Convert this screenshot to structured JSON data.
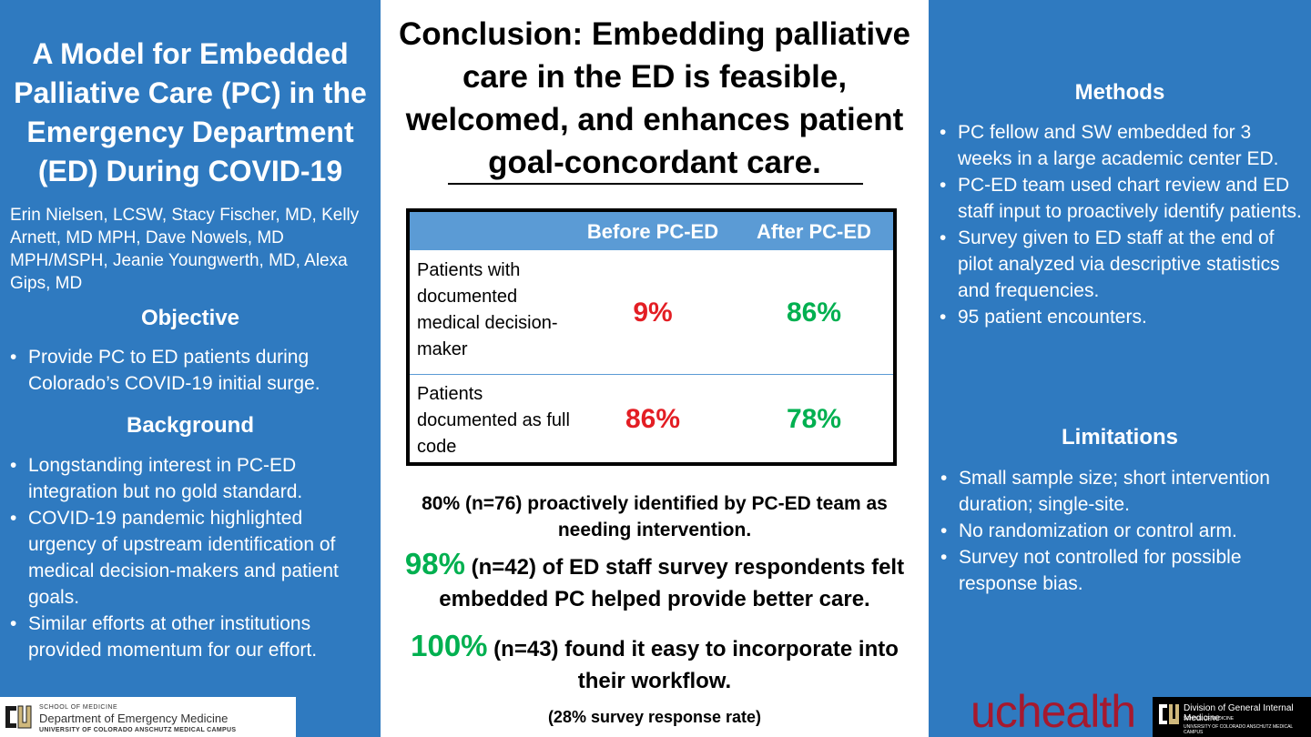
{
  "left": {
    "title": "A Model for Embedded Palliative Care (PC) in the Emergency Department (ED) During COVID-19",
    "authors": "Erin Nielsen, LCSW, Stacy Fischer, MD, Kelly Arnett, MD MPH, Dave Nowels, MD MPH/MSPH, Jeanie Youngwerth, MD, Alexa Gips, MD",
    "objective_heading": "Objective",
    "objective_items": [
      "Provide PC to ED patients during Colorado’s COVID-19 initial surge."
    ],
    "background_heading": "Background",
    "background_items": [
      "Longstanding interest in PC-ED integration but no gold standard.",
      "COVID-19 pandemic highlighted urgency of upstream identification of medical decision-makers and patient goals.",
      "Similar efforts at other institutions provided momentum for our effort."
    ]
  },
  "middle": {
    "conclusion": "Conclusion: Embedding palliative care in the ED is feasible, welcomed, and enhances patient goal-concordant care.",
    "table": {
      "headers": [
        "Before PC-ED",
        "After PC-ED"
      ],
      "rows": [
        {
          "label": "Patients with documented medical decision-maker",
          "before": "9%",
          "after": "86%"
        },
        {
          "label": "Patients documented as full code",
          "before": "86%",
          "after": "78%"
        }
      ]
    },
    "stat1": "80% (n=76) proactively identified by PC-ED team as needing intervention.",
    "stat2_big": "98%",
    "stat2_rest": " (n=42) of ED staff survey respondents felt embedded PC helped provide better care.",
    "stat3_big": "100%",
    "stat3_rest": " (n=43) found it easy to incorporate into their workflow.",
    "footnote": "(28% survey response rate)"
  },
  "right": {
    "methods_heading": "Methods",
    "methods_items": [
      "PC fellow and SW embedded for 3 weeks in a large academic center ED.",
      "PC-ED team used chart review and ED staff input to proactively identify patients.",
      "Survey given to ED staff at the end of pilot analyzed via descriptive statistics and frequencies.",
      "95 patient encounters."
    ],
    "limitations_heading": "Limitations",
    "limitations_items": [
      "Small sample size; short intervention duration; single-site.",
      "No randomization or control arm.",
      "Survey not controlled for possible response bias."
    ]
  },
  "logos": {
    "dem_line1": "SCHOOL OF MEDICINE",
    "dem_line2": "Department of Emergency Medicine",
    "dem_line3": "UNIVERSITY OF COLORADO ANSCHUTZ MEDICAL CAMPUS",
    "uchealth": "uchealth",
    "dgim_line1": "Division of General Internal Medicine",
    "dgim_line2": "SCHOOL OF MEDICINE",
    "dgim_line3": "UNIVERSITY OF COLORADO ANSCHUTZ MEDICAL CAMPUS"
  },
  "colors": {
    "panel_blue": "#2f7ac0",
    "table_header": "#5b9bd5",
    "red": "#e31e24",
    "green": "#00b050",
    "uchealth_red": "#a6192e"
  }
}
